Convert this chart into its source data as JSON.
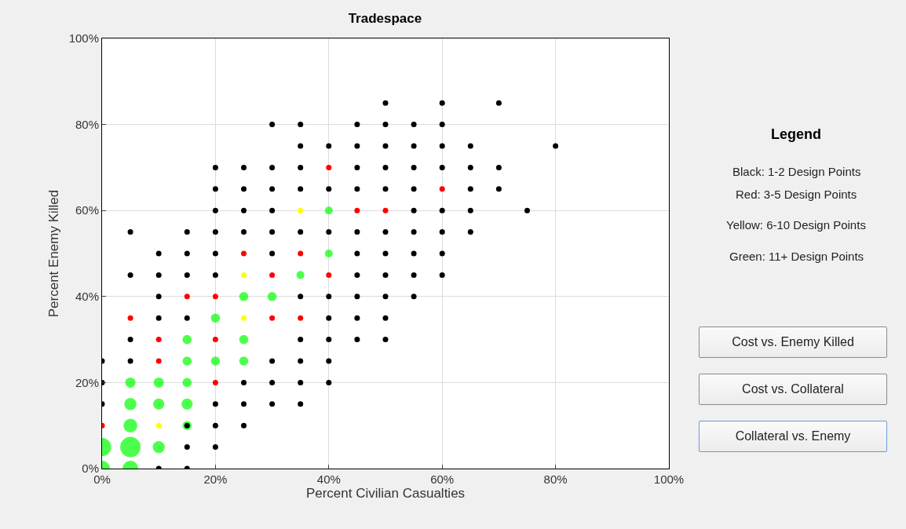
{
  "chart_data": {
    "type": "scatter",
    "title": "Tradespace",
    "xlabel": "Percent Civilian Casualties",
    "ylabel": "Percent Enemy Killed",
    "xlim": [
      0,
      100
    ],
    "ylim": [
      0,
      100
    ],
    "xticks": [
      {
        "value": 0,
        "label": "0%"
      },
      {
        "value": 20,
        "label": "20%"
      },
      {
        "value": 40,
        "label": "40%"
      },
      {
        "value": 60,
        "label": "60%"
      },
      {
        "value": 80,
        "label": "80%"
      },
      {
        "value": 100,
        "label": "100%"
      }
    ],
    "yticks": [
      {
        "value": 0,
        "label": "0%"
      },
      {
        "value": 20,
        "label": "20%"
      },
      {
        "value": 40,
        "label": "40%"
      },
      {
        "value": 60,
        "label": "60%"
      },
      {
        "value": 80,
        "label": "80%"
      },
      {
        "value": 100,
        "label": "100%"
      }
    ],
    "grid": true,
    "marker": "circle",
    "series": [
      {
        "color": "#000000",
        "x": [
          10,
          15,
          15,
          20,
          15,
          20,
          25,
          0,
          20,
          25,
          30,
          35,
          0,
          25,
          30,
          35,
          40,
          0,
          5,
          30,
          35,
          40,
          5,
          35,
          40,
          45,
          50,
          10,
          15,
          40,
          45,
          50,
          10,
          35,
          40,
          45,
          50,
          55,
          5,
          10,
          15,
          20,
          45,
          50,
          55,
          60,
          10,
          15,
          20,
          30,
          45,
          50,
          55,
          60,
          5,
          15,
          20,
          25,
          30,
          35,
          40,
          45,
          50,
          55,
          60,
          65,
          20,
          25,
          30,
          55,
          60,
          65,
          75,
          20,
          25,
          30,
          35,
          40,
          45,
          50,
          55,
          65,
          70,
          20,
          25,
          30,
          35,
          45,
          50,
          55,
          60,
          65,
          70,
          35,
          40,
          45,
          50,
          55,
          60,
          65,
          80,
          30,
          35,
          45,
          50,
          55,
          60,
          50,
          60,
          70
        ],
        "values": [
          0,
          0,
          5,
          5,
          10,
          10,
          10,
          15,
          15,
          15,
          15,
          15,
          20,
          20,
          20,
          20,
          20,
          25,
          25,
          25,
          25,
          25,
          30,
          30,
          30,
          30,
          30,
          35,
          35,
          35,
          35,
          35,
          40,
          40,
          40,
          40,
          40,
          40,
          45,
          45,
          45,
          45,
          45,
          45,
          45,
          45,
          50,
          50,
          50,
          50,
          50,
          50,
          50,
          50,
          55,
          55,
          55,
          55,
          55,
          55,
          55,
          55,
          55,
          55,
          55,
          55,
          60,
          60,
          60,
          60,
          60,
          60,
          60,
          65,
          65,
          65,
          65,
          65,
          65,
          65,
          65,
          65,
          65,
          70,
          70,
          70,
          70,
          70,
          70,
          70,
          70,
          70,
          70,
          75,
          75,
          75,
          75,
          75,
          75,
          75,
          75,
          80,
          80,
          80,
          80,
          80,
          80,
          85,
          85,
          85
        ]
      },
      {
        "color": "#ff0000",
        "x": [
          0,
          20,
          10,
          10,
          20,
          5,
          30,
          35,
          15,
          20,
          30,
          40,
          25,
          35,
          45,
          50,
          60,
          40
        ],
        "values": [
          10,
          20,
          25,
          30,
          30,
          35,
          35,
          35,
          40,
          40,
          45,
          45,
          50,
          50,
          60,
          60,
          65,
          70
        ]
      },
      {
        "color": "#ffff00",
        "x": [
          10,
          25,
          25,
          35
        ],
        "values": [
          10,
          35,
          45,
          60
        ]
      },
      {
        "type": "bubble",
        "color": "#00ff00",
        "x": [
          0,
          5,
          0,
          5,
          10,
          5,
          15,
          5,
          10,
          15,
          5,
          10,
          15,
          15,
          20,
          25,
          15,
          25,
          20,
          25,
          30,
          35,
          40,
          40
        ],
        "values": [
          0,
          0,
          5,
          5,
          5,
          10,
          10,
          15,
          15,
          15,
          20,
          20,
          20,
          25,
          25,
          25,
          30,
          30,
          35,
          40,
          40,
          45,
          50,
          60
        ],
        "sizes": [
          0.6,
          0.6,
          0.8,
          1,
          0.35,
          0.45,
          0.2,
          0.35,
          0.3,
          0.3,
          0.25,
          0.25,
          0.2,
          0.2,
          0.2,
          0.2,
          0.2,
          0.2,
          0.2,
          0.2,
          0.2,
          0.15,
          0.15,
          0.15
        ]
      }
    ],
    "annotations": [
      "Legend",
      "Black: 1-2 Design Points",
      "Red: 3-5 Design Points",
      "Yellow: 6-10 Design Points",
      "Green: 11+ Design Points",
      "Cost vs. Enemy Killed",
      "Cost vs. Collateral",
      "Collateral vs. Enemy"
    ]
  }
}
